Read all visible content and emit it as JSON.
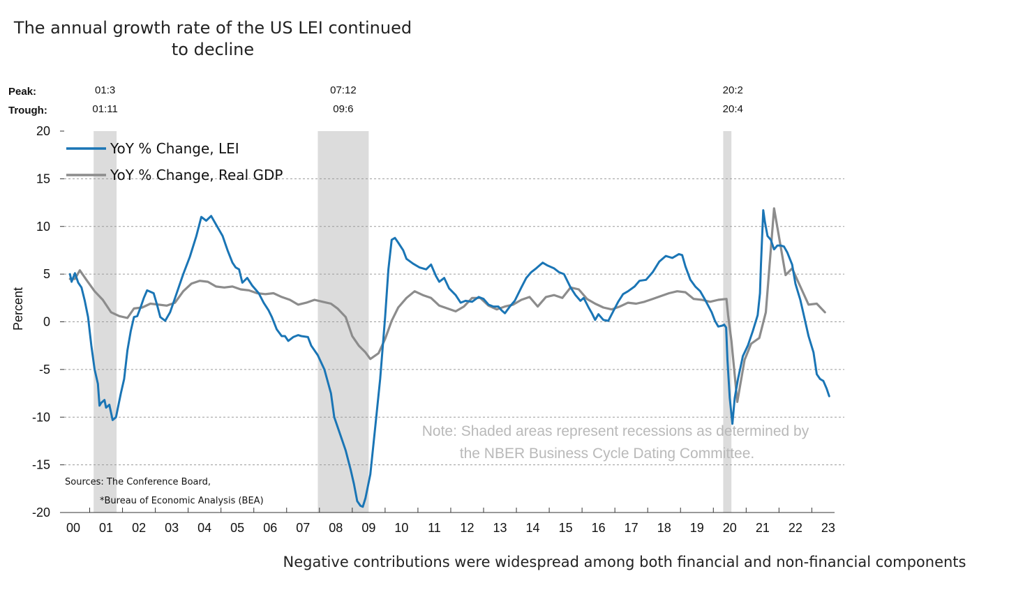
{
  "chart_data": {
    "type": "line",
    "title": "The annual growth rate of the US LEI continued",
    "title_line2": "to decline",
    "caption": "Negative contributions were widespread among both financial and non-financial components",
    "ylabel": "Percent",
    "ylim": [
      -20,
      20
    ],
    "yticks": [
      -20,
      -15,
      -10,
      -5,
      0,
      5,
      10,
      15,
      20
    ],
    "xlim": [
      2000,
      2023.2
    ],
    "xticks": [
      "00",
      "01",
      "02",
      "03",
      "04",
      "05",
      "06",
      "07",
      "08",
      "09",
      "10",
      "11",
      "12",
      "13",
      "14",
      "15",
      "16",
      "17",
      "18",
      "19",
      "20",
      "21",
      "22",
      "23"
    ],
    "grid": "horizontal-dashed",
    "legend_position": "top-left",
    "peak_label": "Peak:",
    "trough_label": "Trough:",
    "recessions": [
      {
        "start": 2000.67,
        "end": 2001.37,
        "peak": "01:3",
        "trough": "01:11"
      },
      {
        "start": 2007.5,
        "end": 2009.05,
        "peak": "07:12",
        "trough": "09:6"
      },
      {
        "start": 2019.85,
        "end": 2020.1,
        "peak": "20:2",
        "trough": "20:4"
      }
    ],
    "note_line1": "Note: Shaded areas represent recessions as determined by",
    "note_line2": "the NBER Business Cycle Dating Committee.",
    "sources_line1": "Sources: The Conference Board,",
    "sources_line2": "*Bureau of Economic Analysis (BEA)",
    "series": [
      {
        "name": "YoY % Change, LEI",
        "color": "#1a75b5",
        "points": [
          [
            1999.95,
            5
          ],
          [
            2000.0,
            4.2
          ],
          [
            2000.1,
            5.1
          ],
          [
            2000.2,
            4.1
          ],
          [
            2000.3,
            3.6
          ],
          [
            2000.4,
            2.2
          ],
          [
            2000.5,
            0.5
          ],
          [
            2000.6,
            -2.5
          ],
          [
            2000.7,
            -5
          ],
          [
            2000.8,
            -6.5
          ],
          [
            2000.85,
            -8.8
          ],
          [
            2000.9,
            -8.5
          ],
          [
            2001.0,
            -8.2
          ],
          [
            2001.05,
            -9
          ],
          [
            2001.15,
            -8.7
          ],
          [
            2001.25,
            -10.3
          ],
          [
            2001.35,
            -10
          ],
          [
            2001.5,
            -7.5
          ],
          [
            2001.6,
            -6
          ],
          [
            2001.7,
            -3
          ],
          [
            2001.8,
            -1
          ],
          [
            2001.9,
            0.5
          ],
          [
            2002.0,
            0.6
          ],
          [
            2002.1,
            1.5
          ],
          [
            2002.2,
            2.5
          ],
          [
            2002.3,
            3.3
          ],
          [
            2002.5,
            3
          ],
          [
            2002.6,
            1.8
          ],
          [
            2002.7,
            0.5
          ],
          [
            2002.85,
            0.1
          ],
          [
            2003.0,
            1
          ],
          [
            2003.2,
            3
          ],
          [
            2003.4,
            5
          ],
          [
            2003.6,
            6.8
          ],
          [
            2003.8,
            9
          ],
          [
            2003.95,
            11
          ],
          [
            2004.1,
            10.6
          ],
          [
            2004.25,
            11.1
          ],
          [
            2004.4,
            10.2
          ],
          [
            2004.6,
            9
          ],
          [
            2004.75,
            7.5
          ],
          [
            2004.9,
            6.2
          ],
          [
            2005.0,
            5.7
          ],
          [
            2005.1,
            5.5
          ],
          [
            2005.2,
            4.1
          ],
          [
            2005.35,
            4.6
          ],
          [
            2005.5,
            3.8
          ],
          [
            2005.7,
            3
          ],
          [
            2005.85,
            2
          ],
          [
            2006.0,
            1.2
          ],
          [
            2006.1,
            0.5
          ],
          [
            2006.25,
            -0.8
          ],
          [
            2006.4,
            -1.5
          ],
          [
            2006.5,
            -1.5
          ],
          [
            2006.6,
            -2
          ],
          [
            2006.75,
            -1.6
          ],
          [
            2006.9,
            -1.4
          ],
          [
            2007.0,
            -1.5
          ],
          [
            2007.2,
            -1.6
          ],
          [
            2007.3,
            -2.5
          ],
          [
            2007.5,
            -3.5
          ],
          [
            2007.7,
            -5
          ],
          [
            2007.9,
            -7.5
          ],
          [
            2008.0,
            -10
          ],
          [
            2008.2,
            -12
          ],
          [
            2008.35,
            -13.5
          ],
          [
            2008.5,
            -15.5
          ],
          [
            2008.6,
            -17
          ],
          [
            2008.7,
            -18.8
          ],
          [
            2008.8,
            -19.3
          ],
          [
            2008.87,
            -19.4
          ],
          [
            2008.95,
            -18.5
          ],
          [
            2009.1,
            -16
          ],
          [
            2009.25,
            -11
          ],
          [
            2009.4,
            -6
          ],
          [
            2009.55,
            0.5
          ],
          [
            2009.65,
            5.5
          ],
          [
            2009.75,
            8.6
          ],
          [
            2009.85,
            8.8
          ],
          [
            2009.95,
            8.3
          ],
          [
            2010.1,
            7.5
          ],
          [
            2010.2,
            6.6
          ],
          [
            2010.4,
            6.1
          ],
          [
            2010.6,
            5.7
          ],
          [
            2010.8,
            5.5
          ],
          [
            2010.95,
            6
          ],
          [
            2011.1,
            4.8
          ],
          [
            2011.2,
            4.2
          ],
          [
            2011.35,
            4.6
          ],
          [
            2011.5,
            3.5
          ],
          [
            2011.7,
            2.8
          ],
          [
            2011.85,
            2
          ],
          [
            2012.0,
            2.2
          ],
          [
            2012.2,
            2.1
          ],
          [
            2012.4,
            2.6
          ],
          [
            2012.55,
            2.4
          ],
          [
            2012.7,
            1.8
          ],
          [
            2012.85,
            1.6
          ],
          [
            2013.0,
            1.6
          ],
          [
            2013.1,
            1.2
          ],
          [
            2013.2,
            0.9
          ],
          [
            2013.35,
            1.6
          ],
          [
            2013.5,
            2.2
          ],
          [
            2013.7,
            3.6
          ],
          [
            2013.85,
            4.6
          ],
          [
            2014.0,
            5.2
          ],
          [
            2014.15,
            5.6
          ],
          [
            2014.35,
            6.2
          ],
          [
            2014.5,
            5.9
          ],
          [
            2014.7,
            5.6
          ],
          [
            2014.85,
            5.2
          ],
          [
            2015.0,
            5
          ],
          [
            2015.2,
            3.6
          ],
          [
            2015.35,
            2.8
          ],
          [
            2015.5,
            2.2
          ],
          [
            2015.6,
            2.5
          ],
          [
            2015.75,
            1.5
          ],
          [
            2015.85,
            0.9
          ],
          [
            2015.95,
            0.2
          ],
          [
            2016.05,
            0.8
          ],
          [
            2016.2,
            0.2
          ],
          [
            2016.35,
            0.1
          ],
          [
            2016.5,
            1.1
          ],
          [
            2016.65,
            2.1
          ],
          [
            2016.8,
            2.9
          ],
          [
            2016.95,
            3.2
          ],
          [
            2017.15,
            3.7
          ],
          [
            2017.3,
            4.3
          ],
          [
            2017.5,
            4.4
          ],
          [
            2017.7,
            5.2
          ],
          [
            2017.9,
            6.3
          ],
          [
            2018.1,
            6.9
          ],
          [
            2018.3,
            6.7
          ],
          [
            2018.5,
            7.1
          ],
          [
            2018.6,
            7
          ],
          [
            2018.7,
            5.8
          ],
          [
            2018.85,
            4.4
          ],
          [
            2019.0,
            3.7
          ],
          [
            2019.15,
            3.2
          ],
          [
            2019.3,
            2.3
          ],
          [
            2019.5,
            1
          ],
          [
            2019.6,
            0.1
          ],
          [
            2019.7,
            -0.5
          ],
          [
            2019.82,
            -0.4
          ],
          [
            2019.88,
            -0.3
          ],
          [
            2019.94,
            -0.6
          ],
          [
            2019.98,
            -4
          ],
          [
            2020.05,
            -8
          ],
          [
            2020.13,
            -10.7
          ],
          [
            2020.2,
            -8
          ],
          [
            2020.3,
            -6
          ],
          [
            2020.45,
            -3.6
          ],
          [
            2020.6,
            -2.5
          ],
          [
            2020.75,
            -1
          ],
          [
            2020.9,
            0.7
          ],
          [
            2020.97,
            3
          ],
          [
            2021.0,
            6
          ],
          [
            2021.07,
            11.7
          ],
          [
            2021.12,
            10.5
          ],
          [
            2021.2,
            9
          ],
          [
            2021.3,
            8.6
          ],
          [
            2021.4,
            7.6
          ],
          [
            2021.5,
            8
          ],
          [
            2021.6,
            8
          ],
          [
            2021.7,
            7.9
          ],
          [
            2021.8,
            7.3
          ],
          [
            2021.95,
            6
          ],
          [
            2022.05,
            4
          ],
          [
            2022.2,
            2.3
          ],
          [
            2022.3,
            0.8
          ],
          [
            2022.45,
            -1.5
          ],
          [
            2022.6,
            -3.2
          ],
          [
            2022.7,
            -5.5
          ],
          [
            2022.8,
            -6
          ],
          [
            2022.9,
            -6.2
          ],
          [
            2023.0,
            -7
          ],
          [
            2023.08,
            -7.8
          ]
        ]
      },
      {
        "name": "YoY % Change, Real GDP",
        "color": "#8c8c8c",
        "points": [
          [
            1999.95,
            4.5
          ],
          [
            2000.1,
            4.5
          ],
          [
            2000.25,
            5.4
          ],
          [
            2000.45,
            4.4
          ],
          [
            2000.7,
            3.2
          ],
          [
            2000.95,
            2.3
          ],
          [
            2001.2,
            1
          ],
          [
            2001.45,
            0.6
          ],
          [
            2001.7,
            0.4
          ],
          [
            2001.9,
            1.4
          ],
          [
            2002.15,
            1.5
          ],
          [
            2002.4,
            1.9
          ],
          [
            2002.65,
            1.8
          ],
          [
            2002.9,
            1.7
          ],
          [
            2003.15,
            2
          ],
          [
            2003.4,
            3.2
          ],
          [
            2003.65,
            4
          ],
          [
            2003.9,
            4.3
          ],
          [
            2004.15,
            4.2
          ],
          [
            2004.4,
            3.7
          ],
          [
            2004.65,
            3.6
          ],
          [
            2004.9,
            3.7
          ],
          [
            2005.15,
            3.4
          ],
          [
            2005.4,
            3.3
          ],
          [
            2005.65,
            3
          ],
          [
            2005.9,
            2.9
          ],
          [
            2006.15,
            3
          ],
          [
            2006.4,
            2.6
          ],
          [
            2006.65,
            2.3
          ],
          [
            2006.9,
            1.8
          ],
          [
            2007.15,
            2
          ],
          [
            2007.4,
            2.3
          ],
          [
            2007.65,
            2.1
          ],
          [
            2007.9,
            1.9
          ],
          [
            2008.1,
            1.4
          ],
          [
            2008.35,
            0.5
          ],
          [
            2008.55,
            -1.5
          ],
          [
            2008.75,
            -2.5
          ],
          [
            2008.95,
            -3.2
          ],
          [
            2009.1,
            -3.9
          ],
          [
            2009.35,
            -3.3
          ],
          [
            2009.55,
            -1.8
          ],
          [
            2009.75,
            0.1
          ],
          [
            2009.95,
            1.5
          ],
          [
            2010.2,
            2.5
          ],
          [
            2010.45,
            3.2
          ],
          [
            2010.7,
            2.8
          ],
          [
            2010.95,
            2.5
          ],
          [
            2011.2,
            1.7
          ],
          [
            2011.45,
            1.4
          ],
          [
            2011.7,
            1.1
          ],
          [
            2011.95,
            1.6
          ],
          [
            2012.2,
            2.5
          ],
          [
            2012.45,
            2.5
          ],
          [
            2012.7,
            1.7
          ],
          [
            2012.95,
            1.3
          ],
          [
            2013.2,
            1.6
          ],
          [
            2013.45,
            1.8
          ],
          [
            2013.7,
            2.3
          ],
          [
            2013.95,
            2.6
          ],
          [
            2014.2,
            1.6
          ],
          [
            2014.45,
            2.6
          ],
          [
            2014.7,
            2.8
          ],
          [
            2014.95,
            2.5
          ],
          [
            2015.2,
            3.6
          ],
          [
            2015.45,
            3.4
          ],
          [
            2015.7,
            2.4
          ],
          [
            2015.95,
            1.9
          ],
          [
            2016.2,
            1.5
          ],
          [
            2016.45,
            1.3
          ],
          [
            2016.7,
            1.6
          ],
          [
            2016.95,
            2
          ],
          [
            2017.2,
            1.9
          ],
          [
            2017.45,
            2.1
          ],
          [
            2017.7,
            2.4
          ],
          [
            2017.95,
            2.7
          ],
          [
            2018.2,
            3
          ],
          [
            2018.45,
            3.2
          ],
          [
            2018.7,
            3.1
          ],
          [
            2018.95,
            2.4
          ],
          [
            2019.2,
            2.3
          ],
          [
            2019.45,
            2.1
          ],
          [
            2019.7,
            2.3
          ],
          [
            2019.95,
            2.4
          ],
          [
            2020.0,
            0.7
          ],
          [
            2020.1,
            -2
          ],
          [
            2020.28,
            -8.4
          ],
          [
            2020.5,
            -4
          ],
          [
            2020.7,
            -2.3
          ],
          [
            2020.95,
            -1.7
          ],
          [
            2021.15,
            1
          ],
          [
            2021.4,
            11.9
          ],
          [
            2021.55,
            8.9
          ],
          [
            2021.75,
            4.9
          ],
          [
            2021.95,
            5.6
          ],
          [
            2022.2,
            3.7
          ],
          [
            2022.45,
            1.8
          ],
          [
            2022.7,
            1.9
          ],
          [
            2022.95,
            1
          ]
        ]
      }
    ]
  }
}
